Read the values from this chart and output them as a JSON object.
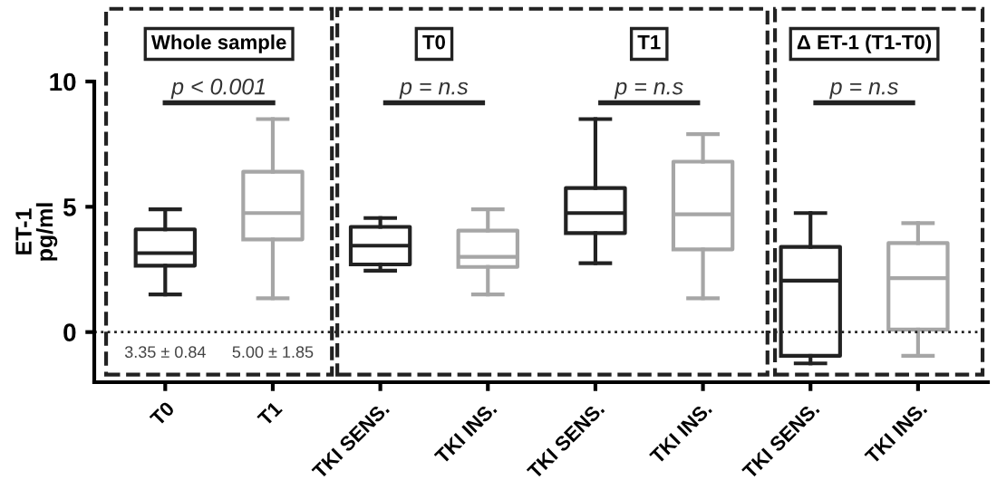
{
  "chart_data": {
    "type": "box",
    "ylabel": "ET-1\npg/ml",
    "categories": [
      "T0",
      "T1",
      "TKI SENS.",
      "TKI INS.",
      "TKI SENS.",
      "TKI INS.",
      "TKI SENS.",
      "TKI INS."
    ],
    "colors": [
      "#222222",
      "#a6a6a6",
      "#222222",
      "#a6a6a6",
      "#222222",
      "#a6a6a6",
      "#222222",
      "#a6a6a6"
    ],
    "boxes": [
      {
        "low": 1.5,
        "q1": 2.65,
        "median": 3.15,
        "q3": 4.1,
        "high": 4.9
      },
      {
        "low": 1.35,
        "q1": 3.7,
        "median": 4.75,
        "q3": 6.4,
        "high": 8.5
      },
      {
        "low": 2.45,
        "q1": 2.7,
        "median": 3.45,
        "q3": 4.2,
        "high": 4.55
      },
      {
        "low": 1.5,
        "q1": 2.6,
        "median": 3.0,
        "q3": 4.05,
        "high": 4.9
      },
      {
        "low": 2.75,
        "q1": 3.95,
        "median": 4.75,
        "q3": 5.75,
        "high": 8.5
      },
      {
        "low": 1.35,
        "q1": 3.3,
        "median": 4.7,
        "q3": 6.8,
        "high": 7.9
      },
      {
        "low": -1.25,
        "q1": -0.95,
        "median": 2.05,
        "q3": 3.4,
        "high": 4.75
      },
      {
        "low": -0.95,
        "q1": 0.1,
        "median": 2.15,
        "q3": 3.55,
        "high": 4.35
      }
    ],
    "ylim": [
      -2,
      10
    ],
    "yticks": [
      0,
      5,
      10
    ],
    "ref_lines": [
      {
        "axis": "y",
        "value": 0,
        "line_style": "dotted",
        "color": "#222222"
      }
    ],
    "annotations": [
      "Whole sample",
      "p < 0.001",
      "T0",
      "p = n.s",
      "T1",
      "p = n.s",
      "Δ ET-1 (T1-T0)",
      "p = n.s",
      "3.35 ± 0.84",
      "5.00 ± 1.85"
    ],
    "grid": false,
    "legend": false
  }
}
